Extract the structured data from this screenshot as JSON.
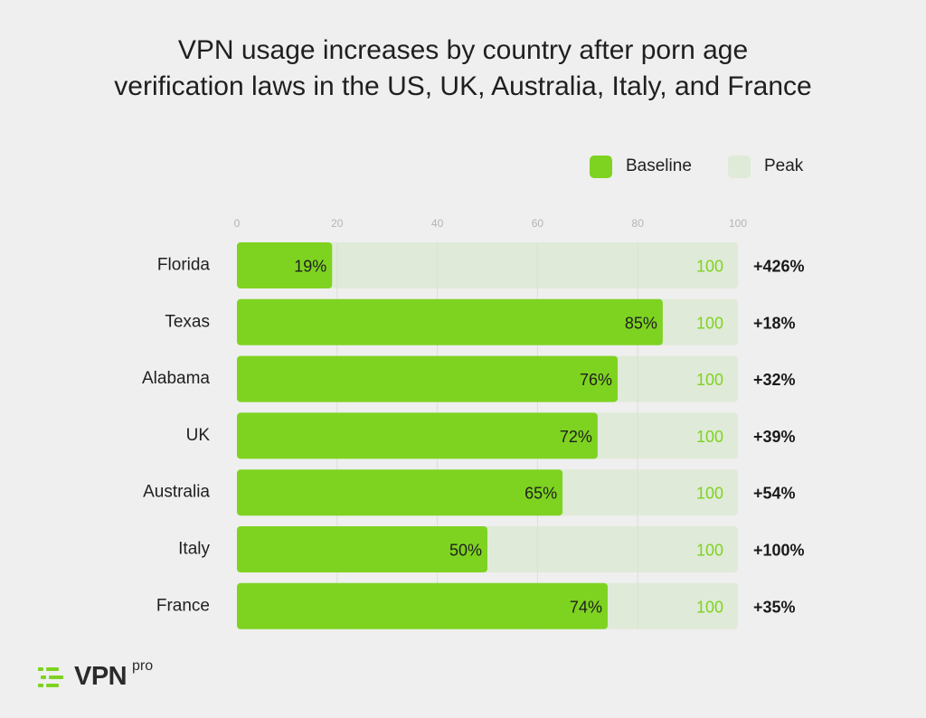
{
  "chart_data": {
    "type": "bar",
    "orientation": "horizontal",
    "title": [
      "VPN usage increases by country after porn age",
      "verification laws in the US, UK, Australia, Italy, and France"
    ],
    "categories": [
      "Florida",
      "Texas",
      "Alabama",
      "UK",
      "Australia",
      "Italy",
      "France"
    ],
    "series": [
      {
        "name": "Baseline",
        "values": [
          19,
          85,
          76,
          72,
          65,
          50,
          74
        ],
        "labels": [
          "19%",
          "85%",
          "76%",
          "72%",
          "65%",
          "50%",
          "74%"
        ],
        "color": "#7ed321"
      },
      {
        "name": "Peak",
        "values": [
          100,
          100,
          100,
          100,
          100,
          100,
          100
        ],
        "labels": [
          "100",
          "100",
          "100",
          "100",
          "100",
          "100",
          "100"
        ],
        "color": "#e0ead8"
      }
    ],
    "increase_labels": [
      "+426%",
      "+18%",
      "+32%",
      "+39%",
      "+54%",
      "+100%",
      "+35%"
    ],
    "xlim": [
      0,
      100
    ],
    "xticks": [
      0,
      20,
      40,
      60,
      80,
      100
    ],
    "xtick_labels": [
      "0",
      "20",
      "40",
      "60",
      "80",
      "100"
    ],
    "grid": true,
    "legend_position": "top-right",
    "overlay": true
  },
  "colors": {
    "baseline": "#7ed321",
    "peak": "#e0ead8",
    "peak_label": "#7ed321",
    "tick": "#b5b5b5",
    "grid": "#d9e2d1"
  },
  "logo": {
    "text": "VPN",
    "superscript": "pro",
    "icon": "vpnpro-logo-icon"
  }
}
